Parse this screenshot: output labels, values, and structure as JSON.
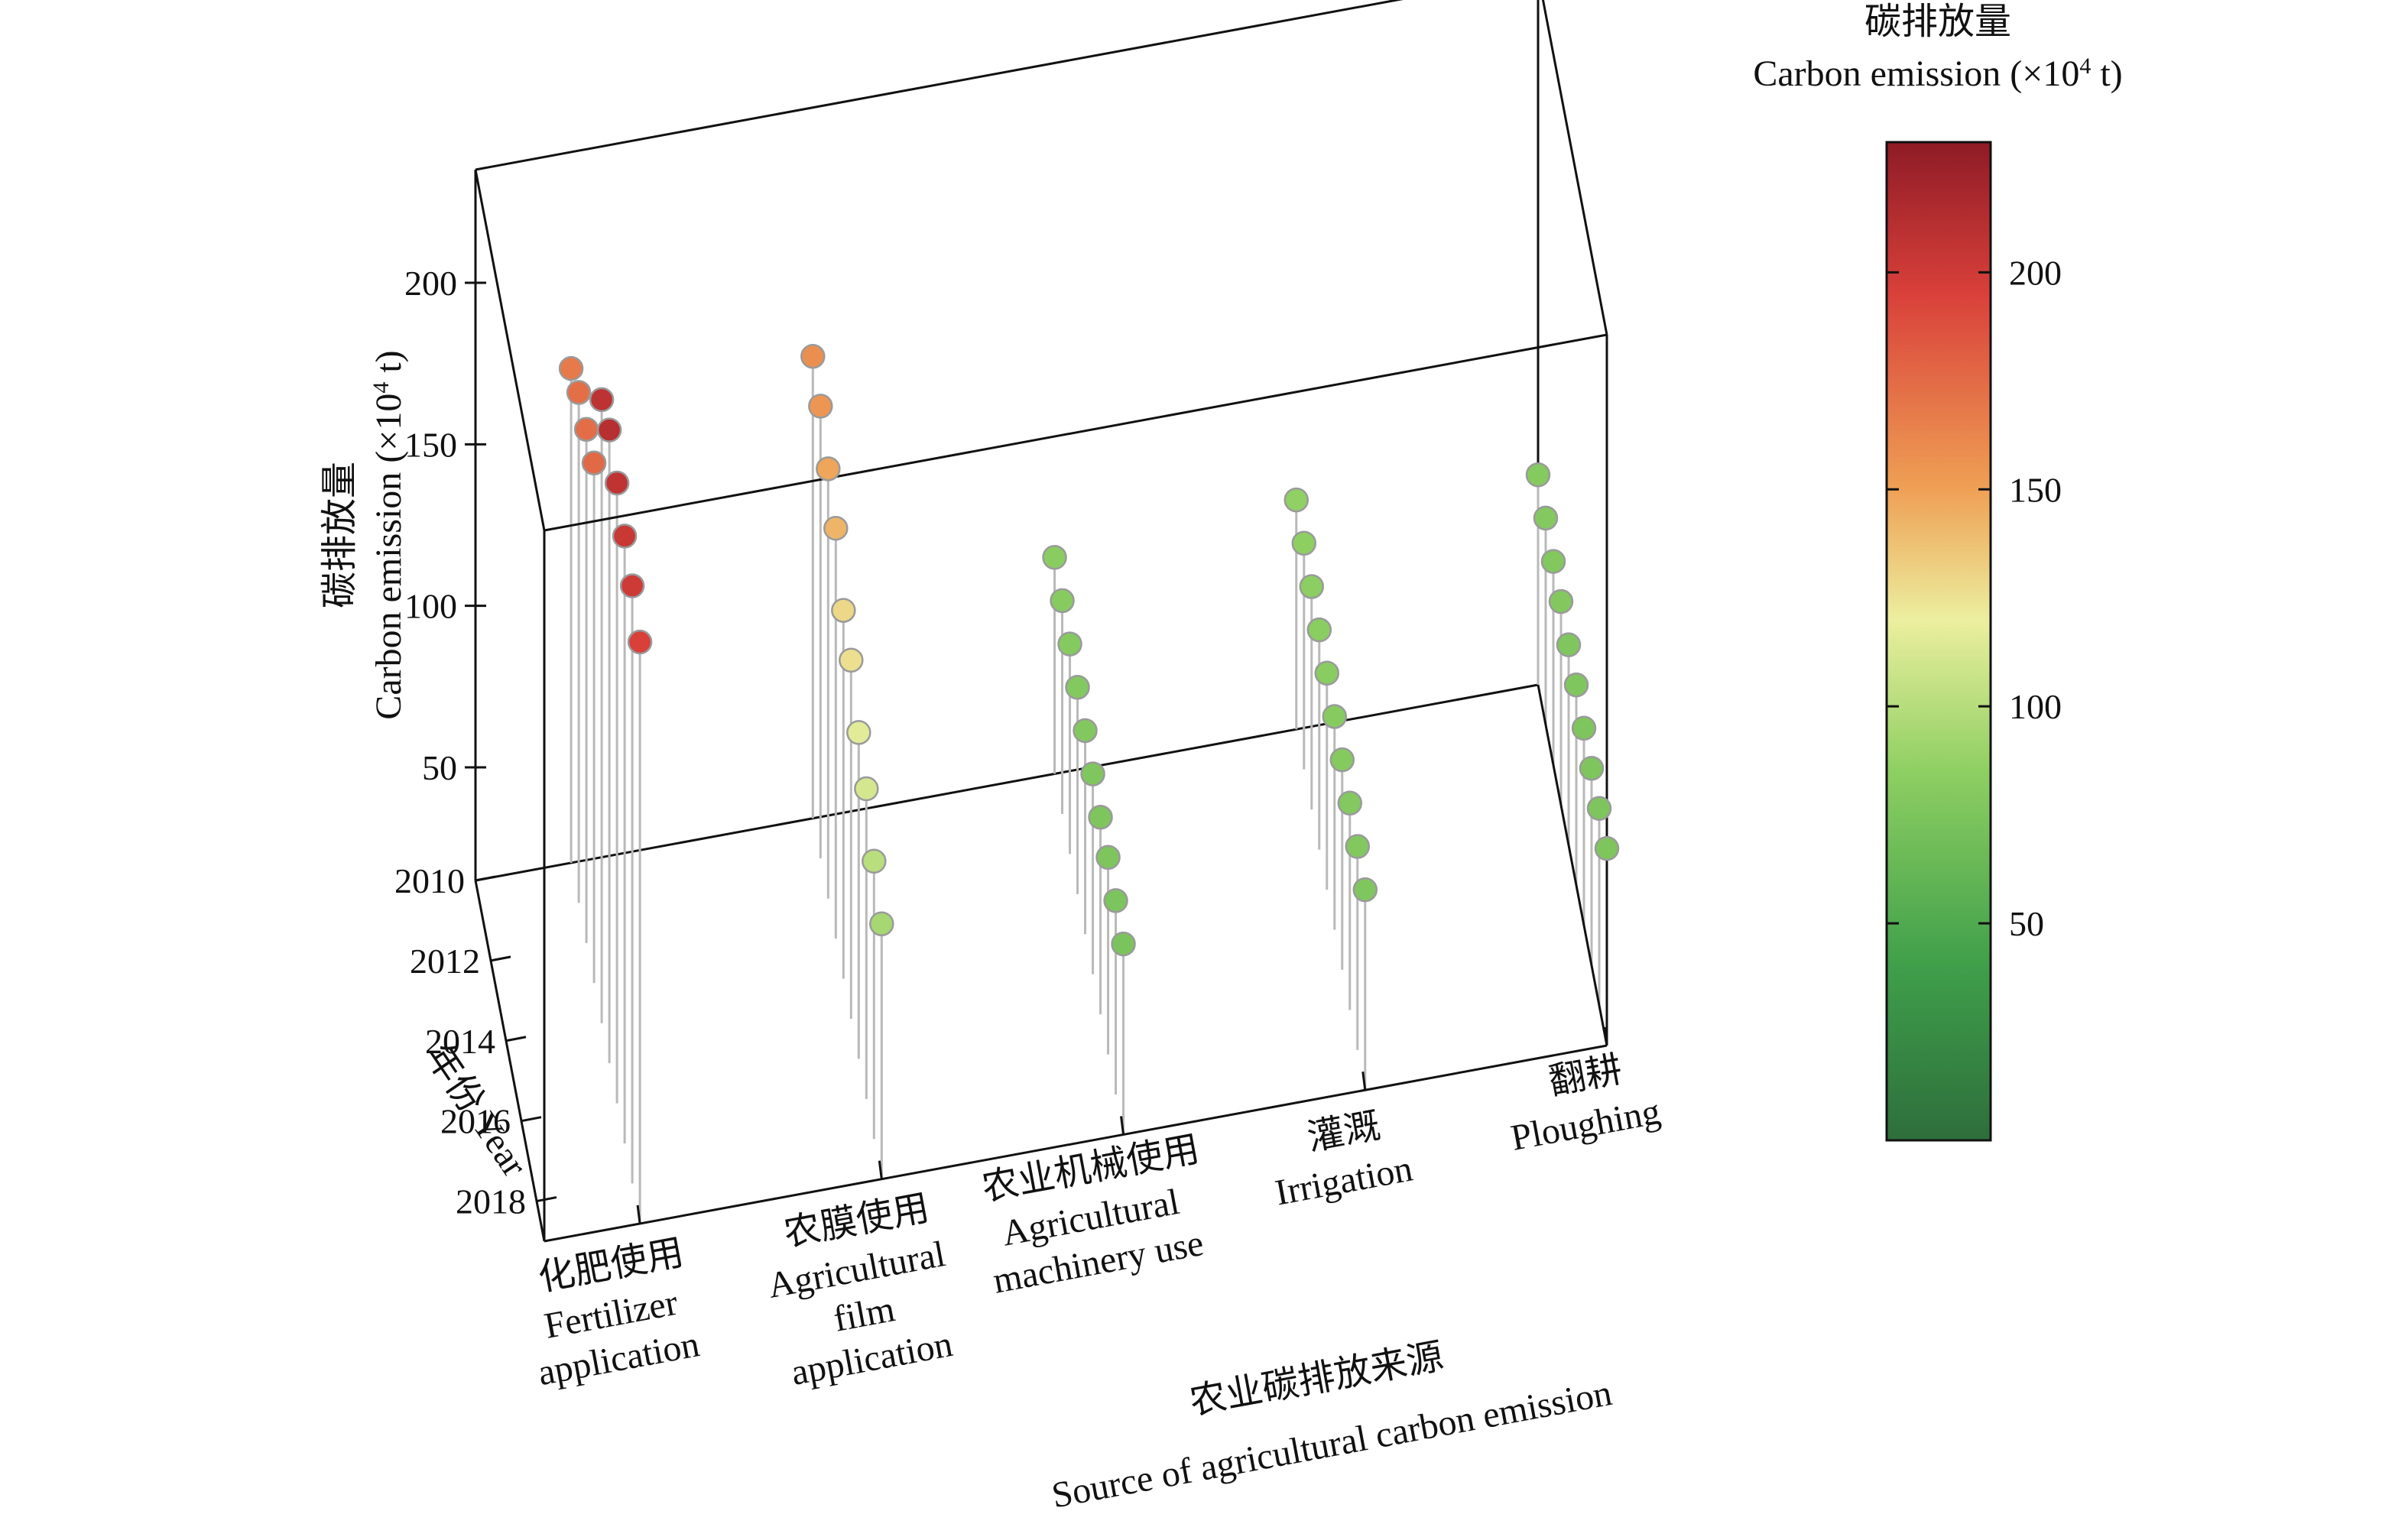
{
  "chart_data": {
    "type": "scatter",
    "projection": "3d-stem",
    "z_axis": {
      "label_cn": "碳排放量",
      "label_en": "Carbon emission (×10",
      "label_sup": "4",
      "label_tail": " t)",
      "ticks": [
        50,
        100,
        150,
        200
      ],
      "range": [
        15,
        235
      ]
    },
    "year_axis": {
      "label": "年份 Year",
      "ticks": [
        "2010",
        "2012",
        "2014",
        "2016",
        "2018"
      ],
      "range": [
        2010,
        2019
      ]
    },
    "source_axis": {
      "title_cn": "农业碳排放来源",
      "title_en": "Source of agricultural carbon emission",
      "categories": [
        {
          "cn": "化肥使用",
          "en": [
            "Fertilizer",
            "application"
          ]
        },
        {
          "cn": "农膜使用",
          "en": [
            "Agricultural",
            "film",
            "application"
          ]
        },
        {
          "cn": "农业机械使用",
          "en": [
            "Agricultural",
            "machinery use"
          ]
        },
        {
          "cn": "灌溉",
          "en": [
            "Irrigation"
          ]
        },
        {
          "cn": "翻耕",
          "en": [
            "Ploughing"
          ]
        }
      ]
    },
    "years": [
      2010,
      2011,
      2012,
      2013,
      2014,
      2015,
      2016,
      2017,
      2018,
      2019
    ],
    "series": [
      {
        "values": [
          168,
          173,
          174,
          176,
          208,
          211,
          207,
          203,
          200,
          195
        ]
      },
      {
        "values": [
          158,
          155,
          148,
          142,
          129,
          126,
          116,
          111,
          101,
          94
        ]
      },
      {
        "values": [
          82,
          81,
          80,
          79,
          78,
          77,
          76,
          76,
          75,
          74
        ]
      },
      {
        "values": [
          86,
          85,
          84,
          83,
          82,
          81,
          80,
          79,
          78,
          77
        ]
      },
      {
        "values": [
          80,
          79,
          78,
          78,
          77,
          77,
          76,
          76,
          76,
          76
        ]
      }
    ],
    "colorbar": {
      "label_cn": "碳排放量",
      "label_en": "Carbon emission (×10",
      "label_sup": "4",
      "label_tail": " t)",
      "ticks": [
        50,
        100,
        150,
        200
      ],
      "range": [
        0,
        230
      ],
      "stops": [
        {
          "v": 0,
          "c": "#2e6e3c"
        },
        {
          "v": 40,
          "c": "#3f9f4a"
        },
        {
          "v": 85,
          "c": "#8ecf62"
        },
        {
          "v": 120,
          "c": "#ecef9f"
        },
        {
          "v": 150,
          "c": "#efa055"
        },
        {
          "v": 195,
          "c": "#d9403a"
        },
        {
          "v": 230,
          "c": "#8e1b26"
        }
      ]
    }
  }
}
